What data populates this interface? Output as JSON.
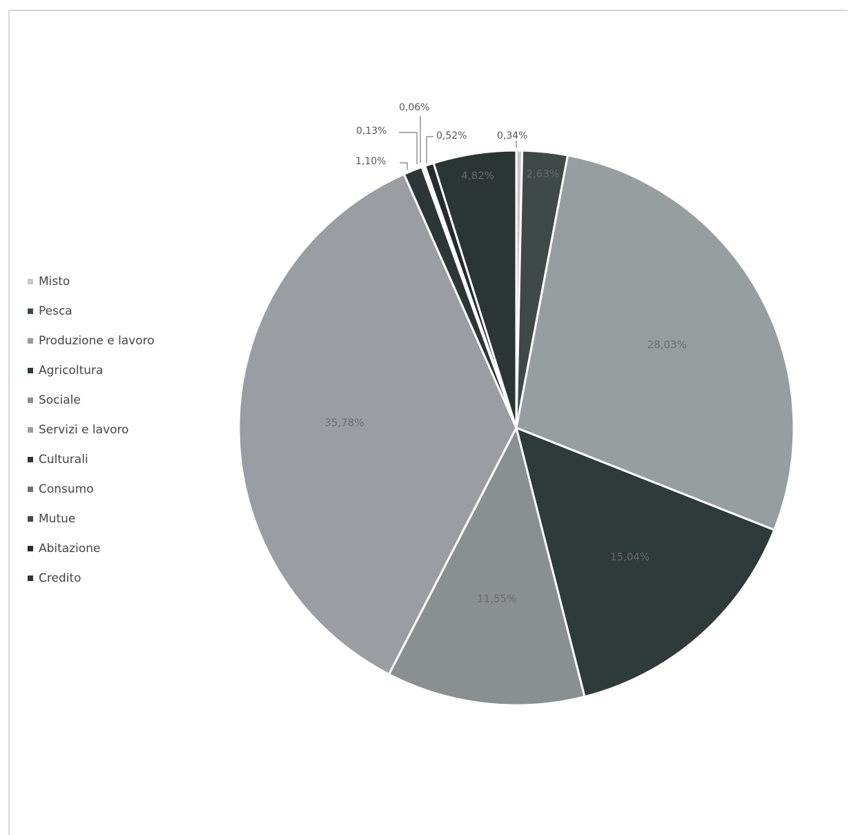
{
  "chart_data": {
    "type": "pie",
    "title": "",
    "categories": [
      "Misto",
      "Pesca",
      "Produzione e lavoro",
      "Agricoltura",
      "Sociale",
      "Servizi e lavoro",
      "Culturali",
      "Consumo",
      "Mutue",
      "Abitazione",
      "Credito"
    ],
    "values": [
      0.34,
      2.63,
      28.03,
      15.04,
      11.55,
      35.78,
      1.1,
      0.13,
      0.06,
      0.52,
      4.82
    ],
    "labels": [
      "0,34%",
      "2,63%",
      "28,03%",
      "15,04%",
      "11,55%",
      "35,78%",
      "1,10%",
      "0,13%",
      "0,06%",
      "0,52%",
      "4,82%"
    ],
    "colors": [
      "#c7c7c7",
      "#3f4a48",
      "#979ea0",
      "#2f3a3a",
      "#8a8f92",
      "#9a9ea2",
      "#2d3636",
      "#6e7474",
      "#404848",
      "#242d2c",
      "#2b3534"
    ],
    "legend_position": "left",
    "start_angle_deg": 0,
    "direction": "clockwise"
  }
}
